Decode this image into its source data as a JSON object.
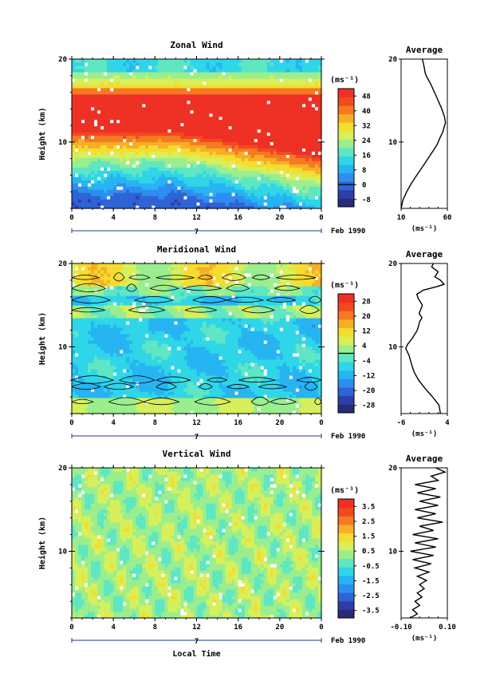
{
  "colormap": [
    "#2a2a7a",
    "#2c3fa8",
    "#2f63d6",
    "#2e8ef0",
    "#26b4f2",
    "#2fd6e8",
    "#5fe6c2",
    "#9aee8e",
    "#d6ef5a",
    "#f5dc2e",
    "#f7ae26",
    "#f57a22",
    "#f24a20",
    "#ef3025"
  ],
  "chart_data": [
    {
      "type": "heatmap",
      "title": "Zonal Wind",
      "ylabel": "Height (km)",
      "xlabel": "",
      "xlim": [
        0,
        24
      ],
      "ylim": [
        2,
        20
      ],
      "x_ticks": [
        "0",
        "4",
        "8",
        "12",
        "16",
        "20",
        "0"
      ],
      "y_ticks": [
        "20",
        "10"
      ],
      "date_marker": "7",
      "date_label": "Feb 1990",
      "colorbar": {
        "unit": "(ms⁻¹)",
        "ticks": [
          "48",
          "40",
          "32",
          "24",
          "16",
          "8",
          "0",
          "-8"
        ],
        "min": -12,
        "max": 52
      },
      "average": {
        "title": "Average",
        "xlim": [
          10,
          60
        ],
        "x_ticks": [
          "10",
          "60"
        ],
        "xunit": "(ms⁻¹)",
        "y_ticks": [
          "20",
          "10"
        ],
        "profile": [
          [
            10,
            2
          ],
          [
            12,
            3
          ],
          [
            16,
            4
          ],
          [
            21,
            5
          ],
          [
            27,
            6
          ],
          [
            33,
            7
          ],
          [
            39,
            8
          ],
          [
            45,
            9
          ],
          [
            49,
            9.7
          ],
          [
            52,
            10.5
          ],
          [
            55,
            11.2
          ],
          [
            57,
            12
          ],
          [
            58,
            12.3
          ],
          [
            57,
            13
          ],
          [
            54,
            14
          ],
          [
            50,
            15
          ],
          [
            46,
            16
          ],
          [
            42,
            17
          ],
          [
            38,
            17.8
          ],
          [
            36,
            18.3
          ],
          [
            35,
            19
          ],
          [
            33,
            20
          ]
        ]
      },
      "contours": false
    },
    {
      "type": "heatmap",
      "title": "Meridional Wind",
      "ylabel": "Height (km)",
      "xlabel": "",
      "xlim": [
        0,
        24
      ],
      "ylim": [
        2,
        20
      ],
      "x_ticks": [
        "0",
        "4",
        "8",
        "12",
        "16",
        "20",
        "0"
      ],
      "y_ticks": [
        "20",
        "10"
      ],
      "date_marker": "7",
      "date_label": "Feb 1990",
      "colorbar": {
        "unit": "(ms⁻¹)",
        "ticks": [
          "28",
          "20",
          "12",
          "4",
          "-4",
          "-12",
          "-20",
          "-28"
        ],
        "min": -32,
        "max": 32
      },
      "average": {
        "title": "Average",
        "xlim": [
          -6,
          4
        ],
        "x_ticks": [
          "-6",
          "4"
        ],
        "xunit": "(ms⁻¹)",
        "y_ticks": [
          "20",
          "10"
        ],
        "profile": [
          [
            2.5,
            2
          ],
          [
            2.2,
            3
          ],
          [
            0.8,
            4
          ],
          [
            -0.8,
            5
          ],
          [
            -2.2,
            6
          ],
          [
            -3.2,
            7
          ],
          [
            -3.8,
            8
          ],
          [
            -4.3,
            9
          ],
          [
            -5,
            9.8
          ],
          [
            -4.6,
            10.3
          ],
          [
            -3.6,
            11
          ],
          [
            -2.5,
            12
          ],
          [
            -2,
            13
          ],
          [
            -1.5,
            13.5
          ],
          [
            -2.1,
            14
          ],
          [
            -1.4,
            15
          ],
          [
            -2.3,
            15.8
          ],
          [
            -2.6,
            16.3
          ],
          [
            -1.2,
            16.8
          ],
          [
            1.6,
            17.2
          ],
          [
            3.3,
            17.5
          ],
          [
            2.5,
            18
          ],
          [
            1.3,
            18.4
          ],
          [
            2,
            19
          ],
          [
            0.6,
            19.6
          ],
          [
            1,
            20
          ]
        ]
      },
      "contours": true
    },
    {
      "type": "heatmap",
      "title": "Vertical Wind",
      "ylabel": "Height (km)",
      "xlabel": "Local Time",
      "xlim": [
        0,
        24
      ],
      "ylim": [
        2,
        20
      ],
      "x_ticks": [
        "0",
        "4",
        "8",
        "12",
        "16",
        "20",
        "0"
      ],
      "y_ticks": [
        "20",
        "10"
      ],
      "date_marker": "7",
      "date_label": "Feb 1990",
      "colorbar": {
        "unit": "(ms⁻¹)",
        "ticks": [
          "3.5",
          "2.5",
          "1.5",
          "0.5",
          "-0.5",
          "-1.5",
          "-2.5",
          "-3.5"
        ],
        "min": -4,
        "max": 4
      },
      "average": {
        "title": "Average",
        "xlim": [
          -0.1,
          0.1
        ],
        "x_ticks": [
          "-0.10",
          "0.10"
        ],
        "xunit": "(ms⁻¹)",
        "y_ticks": [
          "20",
          "10"
        ],
        "profile": [
          [
            -0.06,
            2
          ],
          [
            -0.03,
            2.5
          ],
          [
            -0.05,
            3
          ],
          [
            -0.02,
            3.5
          ],
          [
            -0.04,
            4
          ],
          [
            -0.01,
            4.5
          ],
          [
            -0.03,
            5
          ],
          [
            0,
            5.5
          ],
          [
            -0.02,
            6
          ],
          [
            0.01,
            6.5
          ],
          [
            -0.03,
            7
          ],
          [
            0.02,
            7.5
          ],
          [
            -0.04,
            8
          ],
          [
            0.03,
            8.5
          ],
          [
            -0.05,
            9
          ],
          [
            0.04,
            9.5
          ],
          [
            -0.06,
            10
          ],
          [
            0.05,
            10.5
          ],
          [
            -0.04,
            11
          ],
          [
            0.06,
            11.5
          ],
          [
            -0.05,
            12
          ],
          [
            0.04,
            12.5
          ],
          [
            -0.02,
            13
          ],
          [
            0.08,
            13.5
          ],
          [
            -0.03,
            14
          ],
          [
            0.05,
            14.5
          ],
          [
            -0.04,
            15
          ],
          [
            0.06,
            15.5
          ],
          [
            -0.02,
            16
          ],
          [
            0.07,
            16.5
          ],
          [
            -0.03,
            17
          ],
          [
            0.05,
            17.5
          ],
          [
            -0.04,
            18
          ],
          [
            0.06,
            18.5
          ],
          [
            0.03,
            19
          ],
          [
            0.09,
            19.5
          ],
          [
            0.05,
            20
          ]
        ]
      },
      "contours": false
    }
  ]
}
